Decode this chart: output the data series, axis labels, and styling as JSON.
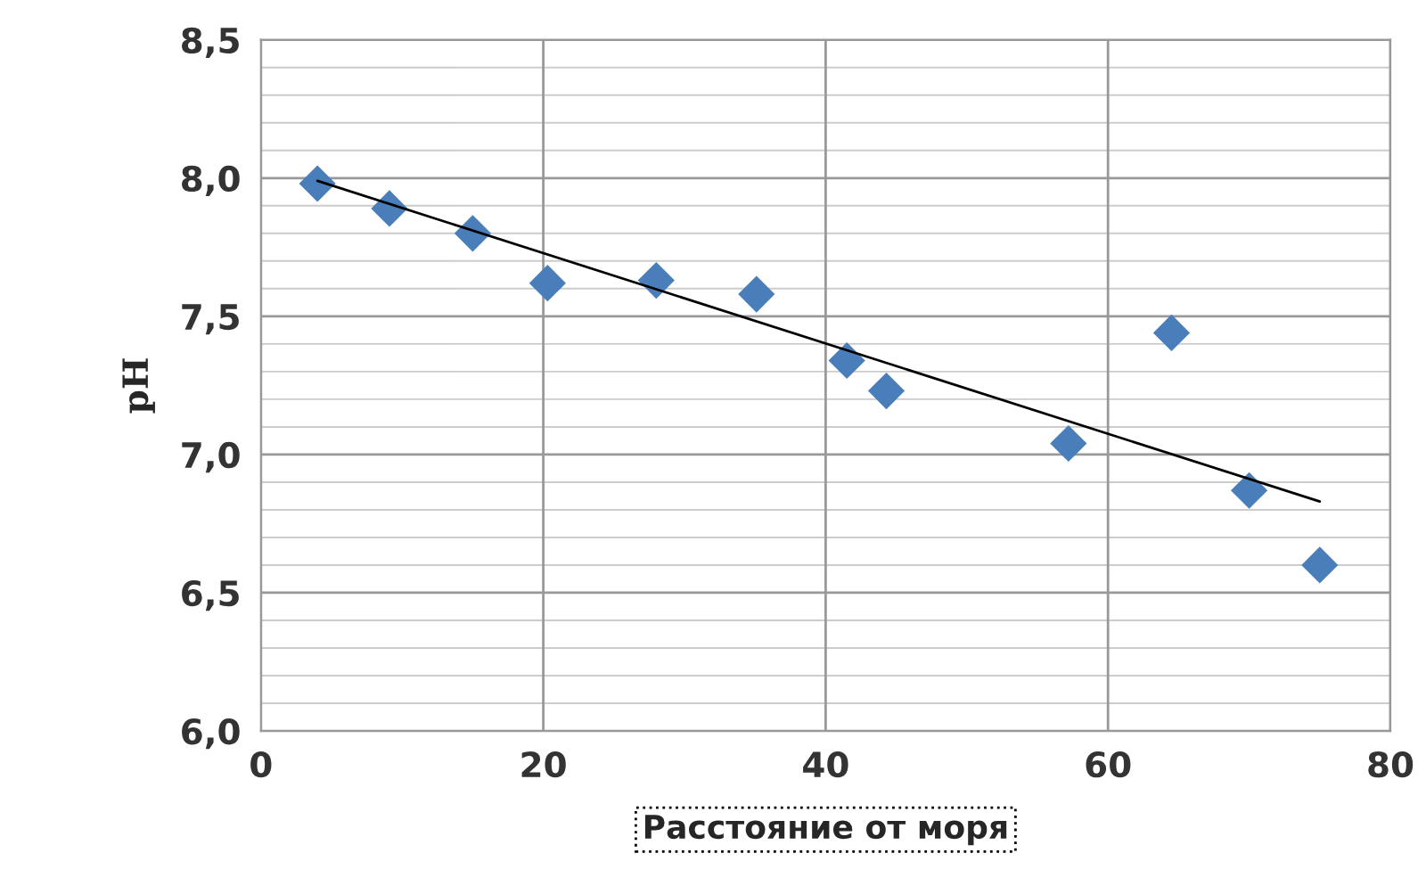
{
  "chart_data": {
    "type": "scatter",
    "xlabel": "Расстояние от моря",
    "ylabel": "pH",
    "xlim": [
      0,
      80
    ],
    "ylim": [
      6.0,
      8.5
    ],
    "xticks": [
      0,
      20,
      40,
      60,
      80
    ],
    "yticks": [
      {
        "value": 6.0,
        "label": "6,0"
      },
      {
        "value": 6.1,
        "label": null
      },
      {
        "value": 6.2,
        "label": null
      },
      {
        "value": 6.3,
        "label": null
      },
      {
        "value": 6.4,
        "label": null
      },
      {
        "value": 6.5,
        "label": "6,5"
      },
      {
        "value": 6.6,
        "label": null
      },
      {
        "value": 6.7,
        "label": null
      },
      {
        "value": 6.8,
        "label": null
      },
      {
        "value": 6.9,
        "label": null
      },
      {
        "value": 7.0,
        "label": "7,0"
      },
      {
        "value": 7.1,
        "label": null
      },
      {
        "value": 7.2,
        "label": null
      },
      {
        "value": 7.3,
        "label": null
      },
      {
        "value": 7.4,
        "label": null
      },
      {
        "value": 7.5,
        "label": "7,5"
      },
      {
        "value": 7.6,
        "label": null
      },
      {
        "value": 7.7,
        "label": null
      },
      {
        "value": 7.8,
        "label": null
      },
      {
        "value": 7.9,
        "label": null
      },
      {
        "value": 8.0,
        "label": "8,0"
      },
      {
        "value": 8.1,
        "label": null
      },
      {
        "value": 8.2,
        "label": null
      },
      {
        "value": 8.3,
        "label": null
      },
      {
        "value": 8.4,
        "label": null
      },
      {
        "value": 8.5,
        "label": "8,5"
      }
    ],
    "grid": true,
    "series": [
      {
        "marker": "diamond",
        "color": "#4a7ebb",
        "x": [
          4.0,
          9.1,
          15.0,
          20.3,
          28.0,
          35.1,
          41.5,
          44.3,
          57.2,
          64.5,
          70.0,
          75.0
        ],
        "values": [
          7.98,
          7.89,
          7.8,
          7.62,
          7.63,
          7.58,
          7.34,
          7.23,
          7.04,
          7.44,
          6.87,
          6.6
        ]
      },
      {
        "type": "line",
        "color": "#000000",
        "x": [
          4.0,
          75.0
        ],
        "values": [
          7.99,
          6.83
        ]
      }
    ]
  }
}
